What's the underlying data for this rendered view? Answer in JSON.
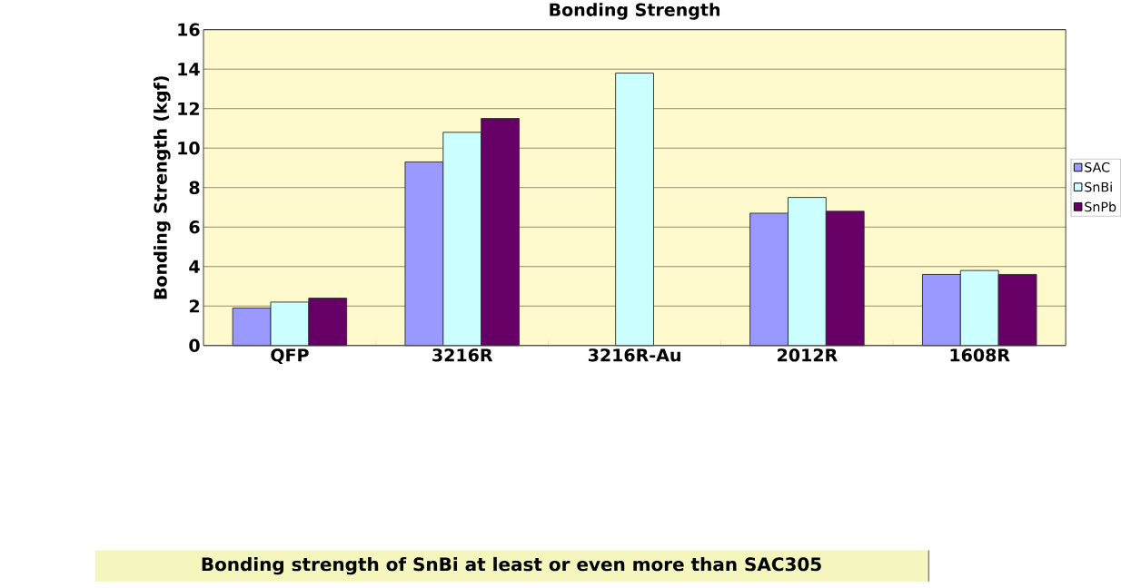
{
  "chart_data": {
    "type": "bar",
    "title": "Bonding Strength",
    "ylabel": "Bonding Strength (kgf)",
    "categories": [
      "QFP",
      "3216R",
      "3216R-Au",
      "2012R",
      "1608R"
    ],
    "series": [
      {
        "name": "SAC",
        "color": "#9999ff",
        "values": [
          1.9,
          9.3,
          null,
          6.7,
          3.6
        ]
      },
      {
        "name": "SnBi",
        "color": "#ccffff",
        "values": [
          2.2,
          10.8,
          13.8,
          7.5,
          3.8
        ]
      },
      {
        "name": "SnPb",
        "color": "#660066",
        "values": [
          2.4,
          11.5,
          null,
          6.8,
          3.6
        ]
      }
    ],
    "ylim": [
      0,
      16
    ],
    "yticks": [
      0,
      2,
      4,
      6,
      8,
      10,
      12,
      14,
      16
    ],
    "grid": "y",
    "legend": "right",
    "annotations": [
      "Bonding strength of SnBi at least or even more than SAC305"
    ]
  }
}
